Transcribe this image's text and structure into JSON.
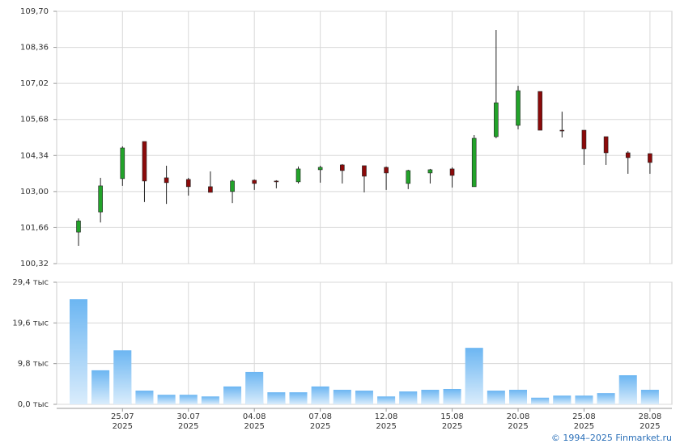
{
  "chart_data": [
    {
      "type": "candlestick",
      "categories": [
        null,
        null,
        "25.07",
        null,
        null,
        "30.07",
        null,
        null,
        "04.08",
        null,
        null,
        "07.08",
        null,
        null,
        "12.08",
        null,
        null,
        "15.08",
        null,
        null,
        "20.08",
        null,
        null,
        "25.08",
        null,
        null,
        "28.08"
      ],
      "year_label": "2025",
      "open": [
        101.49,
        102.24,
        103.48,
        104.86,
        103.51,
        103.45,
        103.18,
        103.0,
        103.42,
        103.39,
        103.36,
        103.81,
        103.99,
        103.96,
        103.9,
        103.3,
        103.69,
        103.84,
        103.18,
        105.04,
        105.46,
        106.72,
        105.28,
        105.28,
        105.04,
        104.44,
        104.41
      ],
      "high": [
        102.0,
        103.51,
        104.68,
        104.86,
        103.96,
        103.51,
        103.75,
        103.45,
        103.45,
        103.42,
        103.93,
        103.96,
        104.02,
        103.96,
        103.93,
        103.81,
        103.84,
        103.9,
        105.1,
        109.01,
        106.93,
        106.72,
        105.97,
        105.28,
        105.04,
        104.5,
        104.41
      ],
      "low": [
        100.98,
        101.85,
        103.21,
        102.61,
        102.54,
        102.85,
        102.97,
        102.57,
        103.06,
        103.12,
        103.3,
        103.33,
        103.3,
        102.97,
        103.06,
        103.09,
        103.3,
        103.15,
        103.18,
        104.98,
        105.31,
        105.28,
        105.01,
        103.99,
        103.99,
        103.66,
        103.66
      ],
      "close": [
        101.91,
        103.21,
        104.62,
        103.39,
        103.33,
        103.18,
        102.97,
        103.39,
        103.3,
        103.36,
        103.84,
        103.9,
        103.78,
        103.57,
        103.69,
        103.78,
        103.81,
        103.6,
        104.98,
        106.3,
        106.75,
        105.28,
        105.25,
        104.59,
        104.44,
        104.26,
        104.08
      ],
      "up_color": "#22a32a",
      "down_color": "#8b0a0a",
      "ylim": [
        100.32,
        109.7
      ],
      "yticks": [
        {
          "value": 100.32,
          "label": "100,32"
        },
        {
          "value": 101.66,
          "label": "101,66"
        },
        {
          "value": 103.0,
          "label": "103,00"
        },
        {
          "value": 104.34,
          "label": "104,34"
        },
        {
          "value": 105.68,
          "label": "105,68"
        },
        {
          "value": 107.02,
          "label": "107,02"
        },
        {
          "value": 108.36,
          "label": "108,36"
        },
        {
          "value": 109.7,
          "label": "109,70"
        }
      ],
      "grid": true
    },
    {
      "type": "bar",
      "values": [
        25.3,
        8.2,
        13.0,
        3.3,
        2.3,
        2.3,
        1.9,
        4.3,
        7.8,
        2.9,
        2.9,
        4.3,
        3.5,
        3.3,
        1.9,
        3.1,
        3.5,
        3.7,
        13.6,
        3.3,
        3.5,
        1.6,
        2.1,
        2.1,
        2.7,
        7.0,
        3.5
      ],
      "color": "#6cb6f2",
      "ylim": [
        0,
        29.4
      ],
      "yticks": [
        {
          "value": 0,
          "label": "0,0 тыс"
        },
        {
          "value": 9.8,
          "label": "9,8 тыс"
        },
        {
          "value": 19.6,
          "label": "19,6 тыс"
        },
        {
          "value": 29.4,
          "label": "29,4 тыс"
        }
      ],
      "grid": true
    }
  ],
  "footer": "© 1994–2025 Finmarket.ru"
}
